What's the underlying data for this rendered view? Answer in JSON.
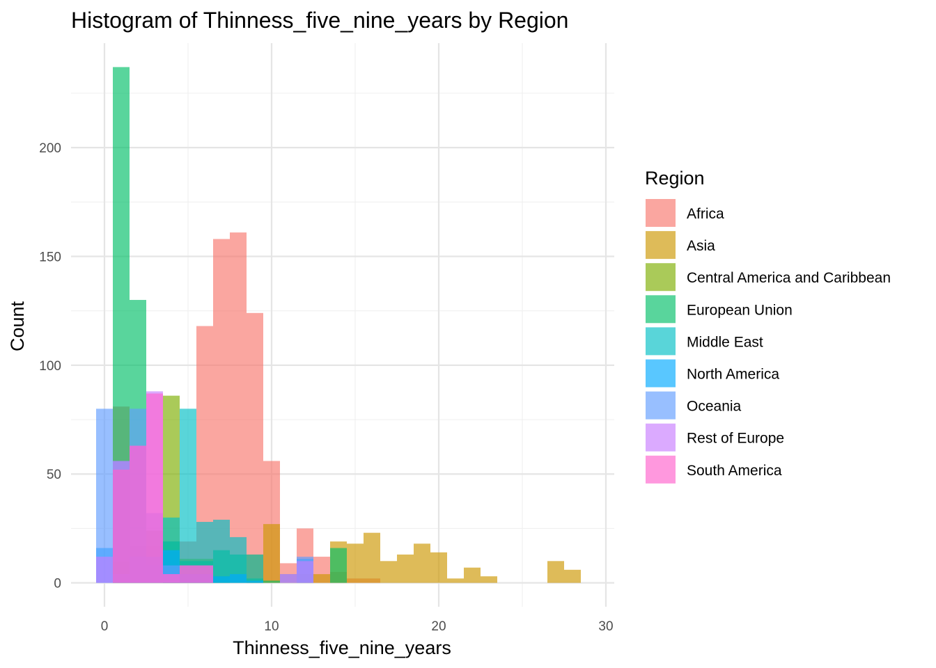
{
  "chart_data": {
    "type": "histogram",
    "title": "Histogram of Thinness_five_nine_years by Region",
    "xlabel": "Thinness_five_nine_years",
    "ylabel": "Count",
    "xlim": [
      -2,
      30.5
    ],
    "ylim": [
      -11,
      248
    ],
    "x_ticks": [
      0,
      10,
      20,
      30
    ],
    "y_ticks": [
      0,
      50,
      100,
      150,
      200
    ],
    "grid": true,
    "bin_width": 1,
    "legend": {
      "title": "Region",
      "position": "right"
    },
    "series": [
      {
        "name": "Africa",
        "color": "#F8766D",
        "bins": [
          [
            1,
            81
          ],
          [
            2,
            17
          ],
          [
            3,
            17
          ],
          [
            4,
            19
          ],
          [
            5,
            19
          ],
          [
            6,
            118
          ],
          [
            7,
            158
          ],
          [
            8,
            161
          ],
          [
            9,
            124
          ],
          [
            10,
            56
          ],
          [
            11,
            9
          ],
          [
            12,
            25
          ],
          [
            13,
            12
          ],
          [
            14,
            5
          ],
          [
            15,
            2
          ],
          [
            16,
            2
          ]
        ]
      },
      {
        "name": "Asia",
        "color": "#CD9600",
        "bins": [
          [
            4,
            3
          ],
          [
            9,
            13
          ],
          [
            10,
            27
          ],
          [
            11,
            4
          ],
          [
            12,
            4
          ],
          [
            13,
            4
          ],
          [
            14,
            19
          ],
          [
            15,
            18
          ],
          [
            16,
            23
          ],
          [
            17,
            10
          ],
          [
            18,
            13
          ],
          [
            19,
            18
          ],
          [
            20,
            14
          ],
          [
            21,
            2
          ],
          [
            22,
            7
          ],
          [
            23,
            3
          ],
          [
            27,
            10
          ],
          [
            28,
            6
          ]
        ]
      },
      {
        "name": "Central America and Caribbean",
        "color": "#7CAE00",
        "bins": [
          [
            1,
            10
          ],
          [
            2,
            8
          ],
          [
            3,
            24
          ],
          [
            4,
            86
          ],
          [
            5,
            11
          ],
          [
            6,
            11
          ],
          [
            7,
            3
          ]
        ]
      },
      {
        "name": "European Union",
        "color": "#00BE67",
        "bins": [
          [
            1,
            237
          ],
          [
            2,
            130
          ],
          [
            3,
            8
          ],
          [
            4,
            19
          ],
          [
            5,
            10
          ],
          [
            6,
            10
          ],
          [
            7,
            15
          ],
          [
            8,
            13
          ],
          [
            9,
            2
          ],
          [
            10,
            1
          ],
          [
            14,
            16
          ]
        ]
      },
      {
        "name": "Middle East",
        "color": "#00BFC4",
        "bins": [
          [
            4,
            30
          ],
          [
            5,
            80
          ],
          [
            6,
            28
          ],
          [
            7,
            29
          ],
          [
            8,
            21
          ],
          [
            9,
            13
          ]
        ]
      },
      {
        "name": "North America",
        "color": "#00A9FF",
        "bins": [
          [
            0,
            16
          ],
          [
            1,
            4
          ],
          [
            2,
            12
          ],
          [
            3,
            12
          ],
          [
            4,
            15
          ],
          [
            5,
            4
          ],
          [
            6,
            4
          ],
          [
            7,
            3
          ],
          [
            8,
            4
          ],
          [
            9,
            1
          ],
          [
            12,
            11
          ]
        ]
      },
      {
        "name": "Oceania",
        "color": "#619CFF",
        "bins": [
          [
            0,
            80
          ],
          [
            1,
            56
          ],
          [
            2,
            80
          ],
          [
            3,
            32
          ],
          [
            4,
            8
          ],
          [
            11,
            4
          ],
          [
            12,
            12
          ]
        ]
      },
      {
        "name": "Rest of Europe",
        "color": "#C77CFF",
        "bins": [
          [
            0,
            12
          ],
          [
            1,
            56
          ],
          [
            2,
            63
          ],
          [
            3,
            88
          ],
          [
            4,
            4
          ],
          [
            5,
            8
          ],
          [
            6,
            8
          ],
          [
            11,
            4
          ],
          [
            12,
            10
          ]
        ]
      },
      {
        "name": "South America",
        "color": "#FF61CC",
        "bins": [
          [
            1,
            52
          ],
          [
            2,
            63
          ],
          [
            3,
            87
          ],
          [
            4,
            4
          ],
          [
            5,
            8
          ],
          [
            6,
            8
          ]
        ]
      }
    ]
  }
}
